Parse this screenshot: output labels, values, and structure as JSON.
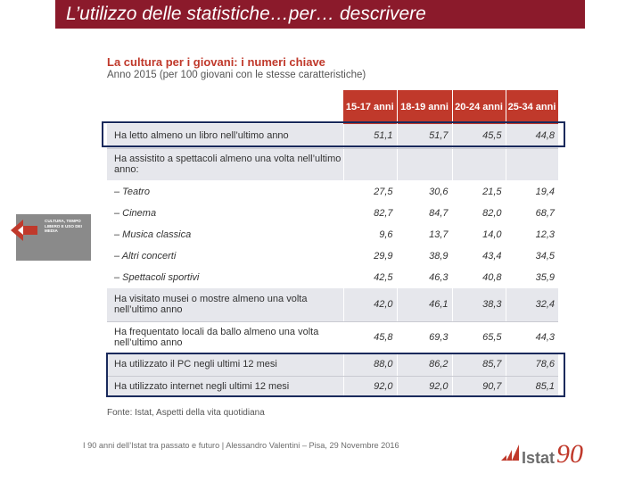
{
  "slide": {
    "title": "L’utilizzo delle statistiche…per… descrivere"
  },
  "side_badge": {
    "text": "CULTURA, TEMPO LIBERO E USO DEI MEDIA",
    "icon": "arrow-icon",
    "color": "#8a8a8a"
  },
  "table": {
    "title": "La cultura per i giovani: i numeri chiave",
    "subtitle": "Anno 2015 (per 100 giovani con le stesse caratteristiche)",
    "headers": [
      "15-17 anni",
      "18-19 anni",
      "20-24 anni",
      "25-34 anni"
    ],
    "rows": [
      {
        "label": "Ha letto almeno un libro nell’ultimo anno",
        "values": [
          "51,1",
          "51,7",
          "45,5",
          "44,8"
        ]
      },
      {
        "label": "Ha assistito a spettacoli almeno una volta nell’ultimo anno:",
        "values": [
          "",
          "",
          "",
          ""
        ]
      },
      {
        "label": "– Teatro",
        "values": [
          "27,5",
          "30,6",
          "21,5",
          "19,4"
        ]
      },
      {
        "label": "– Cinema",
        "values": [
          "82,7",
          "84,7",
          "82,0",
          "68,7"
        ]
      },
      {
        "label": "– Musica classica",
        "values": [
          "9,6",
          "13,7",
          "14,0",
          "12,3"
        ]
      },
      {
        "label": "– Altri concerti",
        "values": [
          "29,9",
          "38,9",
          "43,4",
          "34,5"
        ]
      },
      {
        "label": "– Spettacoli sportivi",
        "values": [
          "42,5",
          "46,3",
          "40,8",
          "35,9"
        ]
      },
      {
        "label": "Ha visitato musei o mostre almeno una volta nell’ultimo anno",
        "values": [
          "42,0",
          "46,1",
          "38,3",
          "32,4"
        ]
      },
      {
        "label": "Ha frequentato locali da ballo almeno una volta nell’ultimo anno",
        "values": [
          "45,8",
          "69,3",
          "65,5",
          "44,3"
        ]
      },
      {
        "label": "Ha utilizzato il PC negli ultimi 12 mesi",
        "values": [
          "88,0",
          "86,2",
          "85,7",
          "78,6"
        ]
      },
      {
        "label": "Ha utilizzato internet negli ultimi 12 mesi",
        "values": [
          "92,0",
          "92,0",
          "90,7",
          "85,1"
        ]
      }
    ],
    "source": "Fonte: Istat, Aspetti della vita quotidiana"
  },
  "footer": {
    "text": "I 90 anni dell’Istat tra passato e futuro | Alessandro Valentini – Pisa, 29 Novembre 2016"
  },
  "logo": {
    "name": "Istat",
    "number": "90"
  },
  "colors": {
    "title_bar": "#8b1a2b",
    "header": "#c0392b",
    "highlight_box": "#1a2a5c",
    "row_shade": "#e6e7ec"
  }
}
